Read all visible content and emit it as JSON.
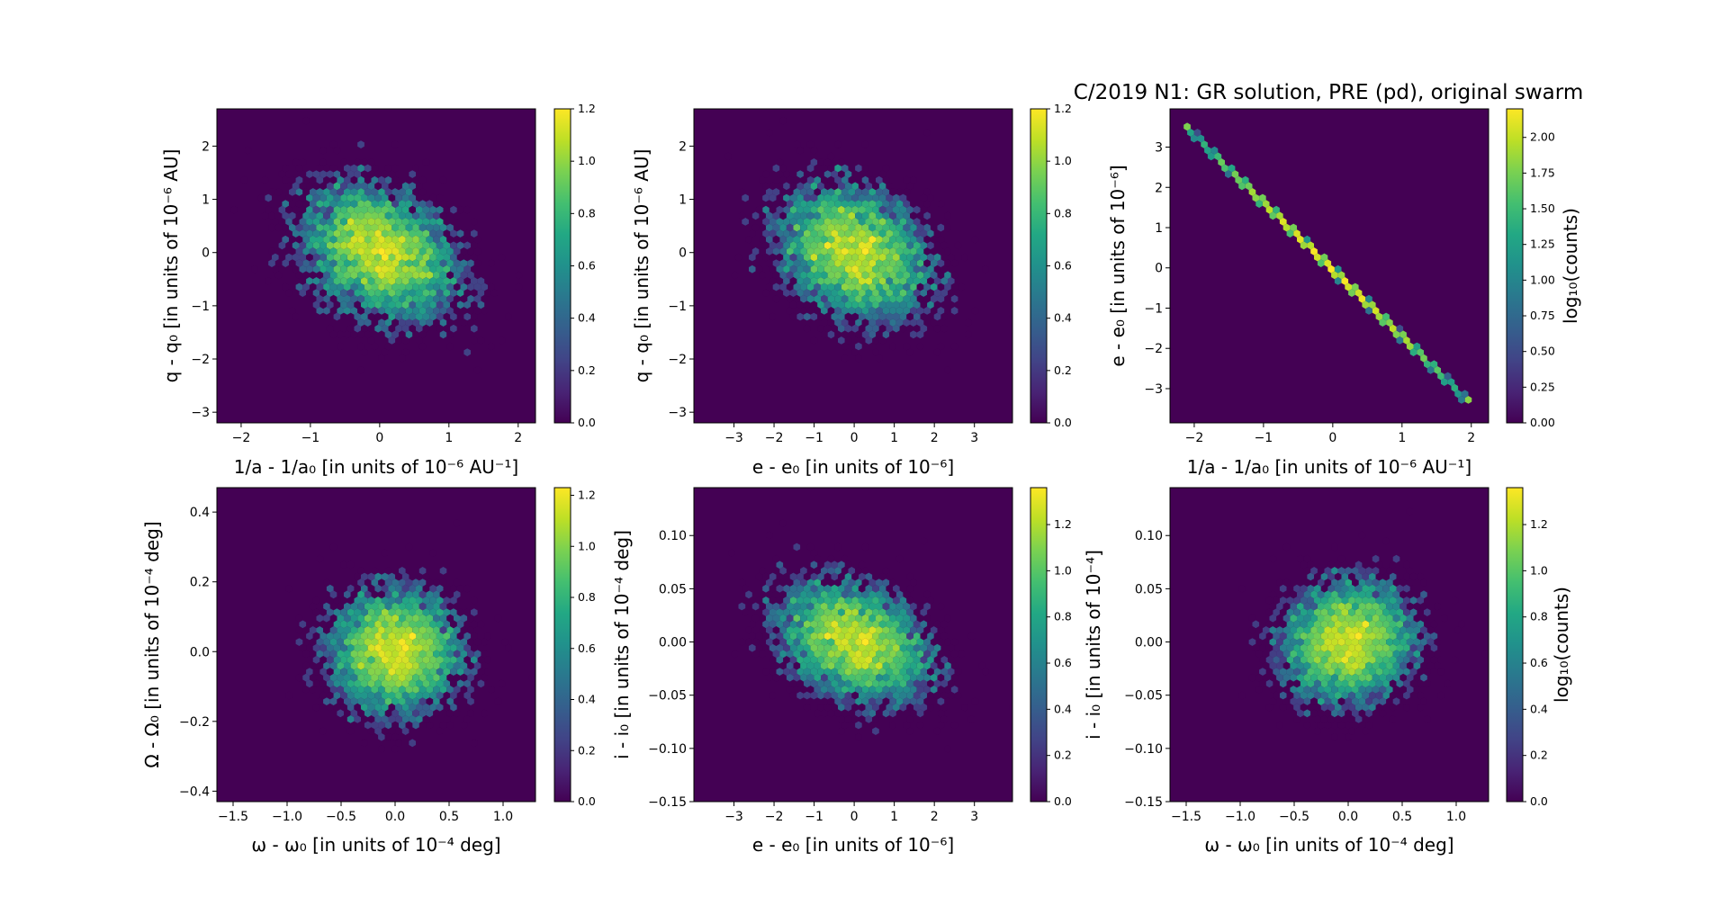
{
  "title": "C/2019 N1: GR solution, PRE  (pd),  original swarm",
  "chart_data": [
    {
      "type": "heatmap",
      "subtype": "hexbin",
      "xlabel": "1/a - 1/a₀ [in units of 10⁻⁶ AU⁻¹]",
      "ylabel": "q - q₀ [in units of 10⁻⁶ AU]",
      "xlim": [
        -2.35,
        2.25
      ],
      "ylim": [
        -3.2,
        2.7
      ],
      "xticks": [
        "−2",
        "−1",
        "0",
        "1",
        "2"
      ],
      "xtick_values": [
        -2,
        -1,
        0,
        1,
        2
      ],
      "yticks": [
        "−3",
        "−2",
        "−1",
        "0",
        "1",
        "2"
      ],
      "ytick_values": [
        -3,
        -2,
        -1,
        0,
        1,
        2
      ],
      "distribution": {
        "shape": "cloud",
        "center": [
          0.0,
          0.0
        ],
        "sd": [
          0.85,
          0.95
        ],
        "correlation": -0.3
      },
      "colorbar": {
        "label": "",
        "range": [
          0,
          1.2
        ],
        "ticks": [
          "0.0",
          "0.2",
          "0.4",
          "0.6",
          "0.8",
          "1.0",
          "1.2"
        ],
        "tick_values": [
          0,
          0.2,
          0.4,
          0.6,
          0.8,
          1.0,
          1.2
        ]
      }
    },
    {
      "type": "heatmap",
      "subtype": "hexbin",
      "xlabel": "e - e₀ [in units of 10⁻⁶]",
      "ylabel": "q - q₀ [in units of 10⁻⁶ AU]",
      "xlim": [
        -4.0,
        3.95
      ],
      "ylim": [
        -3.2,
        2.7
      ],
      "xticks": [
        "−3",
        "−2",
        "−1",
        "0",
        "1",
        "2",
        "3"
      ],
      "xtick_values": [
        -3,
        -2,
        -1,
        0,
        1,
        2,
        3
      ],
      "yticks": [
        "−3",
        "−2",
        "−1",
        "0",
        "1",
        "2"
      ],
      "ytick_values": [
        -3,
        -2,
        -1,
        0,
        1,
        2
      ],
      "distribution": {
        "shape": "cloud",
        "center": [
          0.0,
          0.0
        ],
        "sd": [
          1.4,
          0.95
        ],
        "correlation": -0.25
      },
      "colorbar": {
        "label": "",
        "range": [
          0,
          1.2
        ],
        "ticks": [
          "0.0",
          "0.2",
          "0.4",
          "0.6",
          "0.8",
          "1.0",
          "1.2"
        ],
        "tick_values": [
          0,
          0.2,
          0.4,
          0.6,
          0.8,
          1.0,
          1.2
        ]
      }
    },
    {
      "type": "heatmap",
      "subtype": "hexbin",
      "xlabel": "1/a - 1/a₀ [in units of 10⁻⁶ AU⁻¹]",
      "ylabel": "e - e₀ [in units of 10⁻⁶]",
      "xlim": [
        -2.35,
        2.25
      ],
      "ylim": [
        -3.85,
        3.95
      ],
      "xticks": [
        "−2",
        "−1",
        "0",
        "1",
        "2"
      ],
      "xtick_values": [
        -2,
        -1,
        0,
        1,
        2
      ],
      "yticks": [
        "−3",
        "−2",
        "−1",
        "0",
        "1",
        "2",
        "3"
      ],
      "ytick_values": [
        -3,
        -2,
        -1,
        0,
        1,
        2,
        3
      ],
      "distribution": {
        "shape": "line",
        "x_from": -2.1,
        "x_to": 1.95,
        "y_from": 3.45,
        "y_to": -3.3
      },
      "colorbar": {
        "label": "log₁₀(counts)",
        "range": [
          0,
          2.2
        ],
        "ticks": [
          "0.00",
          "0.25",
          "0.50",
          "0.75",
          "1.00",
          "1.25",
          "1.50",
          "1.75",
          "2.00"
        ],
        "tick_values": [
          0,
          0.25,
          0.5,
          0.75,
          1.0,
          1.25,
          1.5,
          1.75,
          2.0
        ]
      }
    },
    {
      "type": "heatmap",
      "subtype": "hexbin",
      "xlabel": "ω - ω₀ [in units of 10⁻⁴ deg]",
      "ylabel": "Ω - Ω₀ [in units of 10⁻⁴ deg]",
      "xlim": [
        -1.65,
        1.3
      ],
      "ylim": [
        -0.43,
        0.47
      ],
      "xticks": [
        "−1.5",
        "−1.0",
        "−0.5",
        "0.0",
        "0.5",
        "1.0"
      ],
      "xtick_values": [
        -1.5,
        -1.0,
        -0.5,
        0.0,
        0.5,
        1.0
      ],
      "yticks": [
        "−0.4",
        "−0.2",
        "0.0",
        "0.2",
        "0.4"
      ],
      "ytick_values": [
        -0.4,
        -0.2,
        0.0,
        0.2,
        0.4
      ],
      "distribution": {
        "shape": "cloud",
        "center": [
          0.0,
          0.0
        ],
        "sd": [
          0.45,
          0.13
        ],
        "correlation": 0.0
      },
      "colorbar": {
        "label": "",
        "range": [
          0,
          1.23
        ],
        "ticks": [
          "0.0",
          "0.2",
          "0.4",
          "0.6",
          "0.8",
          "1.0",
          "1.2"
        ],
        "tick_values": [
          0,
          0.2,
          0.4,
          0.6,
          0.8,
          1.0,
          1.2
        ]
      }
    },
    {
      "type": "heatmap",
      "subtype": "hexbin",
      "xlabel": "e - e₀ [in units of 10⁻⁶]",
      "ylabel": "i - i₀ [in units of 10⁻⁴ deg]",
      "xlim": [
        -4.0,
        3.95
      ],
      "ylim": [
        -0.15,
        0.145
      ],
      "xticks": [
        "−3",
        "−2",
        "−1",
        "0",
        "1",
        "2",
        "3"
      ],
      "xtick_values": [
        -3,
        -2,
        -1,
        0,
        1,
        2,
        3
      ],
      "yticks": [
        "−0.15",
        "−0.10",
        "−0.05",
        "0.00",
        "0.05",
        "0.10"
      ],
      "ytick_values": [
        -0.15,
        -0.1,
        -0.05,
        0.0,
        0.05,
        0.1
      ],
      "distribution": {
        "shape": "cloud",
        "center": [
          0.0,
          0.0
        ],
        "sd": [
          1.4,
          0.042
        ],
        "correlation": -0.3
      },
      "colorbar": {
        "label": "",
        "range": [
          0,
          1.36
        ],
        "ticks": [
          "0.0",
          "0.2",
          "0.4",
          "0.6",
          "0.8",
          "1.0",
          "1.2"
        ],
        "tick_values": [
          0,
          0.2,
          0.4,
          0.6,
          0.8,
          1.0,
          1.2
        ]
      }
    },
    {
      "type": "heatmap",
      "subtype": "hexbin",
      "xlabel": "ω - ω₀ [in units of 10⁻⁴ deg]",
      "ylabel": "i - i₀ [in units of 10⁻⁴]",
      "xlim": [
        -1.65,
        1.3
      ],
      "ylim": [
        -0.15,
        0.145
      ],
      "xticks": [
        "−1.5",
        "−1.0",
        "−0.5",
        "0.0",
        "0.5",
        "1.0"
      ],
      "xtick_values": [
        -1.5,
        -1.0,
        -0.5,
        0.0,
        0.5,
        1.0
      ],
      "yticks": [
        "−0.15",
        "−0.10",
        "−0.05",
        "0.00",
        "0.05",
        "0.10"
      ],
      "ytick_values": [
        -0.15,
        -0.1,
        -0.05,
        0.0,
        0.05,
        0.1
      ],
      "distribution": {
        "shape": "cloud",
        "center": [
          0.0,
          0.0
        ],
        "sd": [
          0.45,
          0.042
        ],
        "correlation": 0.1
      },
      "colorbar": {
        "label": "log₁₀(counts)",
        "range": [
          0,
          1.36
        ],
        "ticks": [
          "0.0",
          "0.2",
          "0.4",
          "0.6",
          "0.8",
          "1.0",
          "1.2"
        ],
        "tick_values": [
          0,
          0.2,
          0.4,
          0.6,
          0.8,
          1.0,
          1.2
        ]
      }
    }
  ]
}
